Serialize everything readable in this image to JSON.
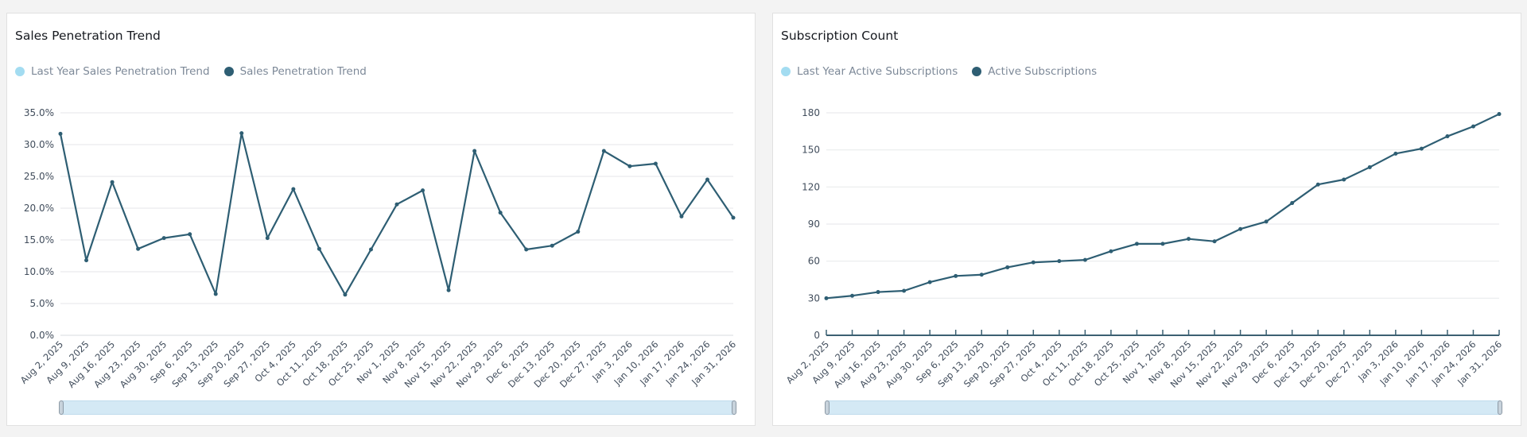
{
  "colors": {
    "series": "#2e5e73",
    "last_year": "#a3dcf1",
    "grid": "#e9ebed",
    "scrollbar": "#d4e9f5"
  },
  "chart_data": [
    {
      "type": "line",
      "title": "Sales Penetration Trend",
      "legend": [
        {
          "name": "Last Year Sales Penetration Trend",
          "color": "#a3dcf1"
        },
        {
          "name": "Sales Penetration Trend",
          "color": "#2e5e73"
        }
      ],
      "legend_position": "top-left",
      "x": [
        "Aug 2, 2025",
        "Aug 9, 2025",
        "Aug 16, 2025",
        "Aug 23, 2025",
        "Aug 30, 2025",
        "Sep 6, 2025",
        "Sep 13, 2025",
        "Sep 20, 2025",
        "Sep 27, 2025",
        "Oct 4, 2025",
        "Oct 11, 2025",
        "Oct 18, 2025",
        "Oct 25, 2025",
        "Nov 1, 2025",
        "Nov 8, 2025",
        "Nov 15, 2025",
        "Nov 22, 2025",
        "Nov 29, 2025",
        "Dec 6, 2025",
        "Dec 13, 2025",
        "Dec 20, 2025",
        "Dec 27, 2025",
        "Jan 3, 2026",
        "Jan 10, 2026",
        "Jan 17, 2026",
        "Jan 24, 2026",
        "Jan 31, 2026"
      ],
      "series": [
        {
          "name": "Sales Penetration Trend",
          "values": [
            31.7,
            11.8,
            24.1,
            13.6,
            15.3,
            15.9,
            6.5,
            31.8,
            15.3,
            23.0,
            13.6,
            6.4,
            13.5,
            20.6,
            22.8,
            7.1,
            29.0,
            19.3,
            13.5,
            14.1,
            16.3,
            29.0,
            26.6,
            27.0,
            18.7,
            24.5,
            18.5
          ]
        }
      ],
      "yticks": [
        0,
        5,
        10,
        15,
        20,
        25,
        30,
        35
      ],
      "ytick_labels": [
        "0.0%",
        "5.0%",
        "10.0%",
        "15.0%",
        "20.0%",
        "25.0%",
        "30.0%",
        "35.0%"
      ],
      "ylim": [
        0,
        35
      ],
      "grid": true,
      "xlabel": "",
      "ylabel": ""
    },
    {
      "type": "line",
      "title": "Subscription Count",
      "legend": [
        {
          "name": "Last Year Active Subscriptions",
          "color": "#a3dcf1"
        },
        {
          "name": "Active Subscriptions",
          "color": "#2e5e73"
        }
      ],
      "legend_position": "top-left",
      "x": [
        "Aug 2, 2025",
        "Aug 9, 2025",
        "Aug 16, 2025",
        "Aug 23, 2025",
        "Aug 30, 2025",
        "Sep 6, 2025",
        "Sep 13, 2025",
        "Sep 20, 2025",
        "Sep 27, 2025",
        "Oct 4, 2025",
        "Oct 11, 2025",
        "Oct 18, 2025",
        "Oct 25, 2025",
        "Nov 1, 2025",
        "Nov 8, 2025",
        "Nov 15, 2025",
        "Nov 22, 2025",
        "Nov 29, 2025",
        "Dec 6, 2025",
        "Dec 13, 2025",
        "Dec 20, 2025",
        "Dec 27, 2025",
        "Jan 3, 2026",
        "Jan 10, 2026",
        "Jan 17, 2026",
        "Jan 24, 2026",
        "Jan 31, 2026"
      ],
      "series": [
        {
          "name": "Active Subscriptions",
          "values": [
            30,
            32,
            35,
            36,
            43,
            48,
            49,
            55,
            59,
            60,
            61,
            68,
            74,
            74,
            78,
            76,
            86,
            92,
            107,
            122,
            126,
            136,
            147,
            151,
            161,
            169,
            179
          ]
        }
      ],
      "yticks": [
        0,
        30,
        60,
        90,
        120,
        150,
        180
      ],
      "ytick_labels": [
        "0",
        "30",
        "60",
        "90",
        "120",
        "150",
        "180"
      ],
      "ylim": [
        0,
        180
      ],
      "grid": true,
      "xlabel": "",
      "ylabel": ""
    }
  ]
}
